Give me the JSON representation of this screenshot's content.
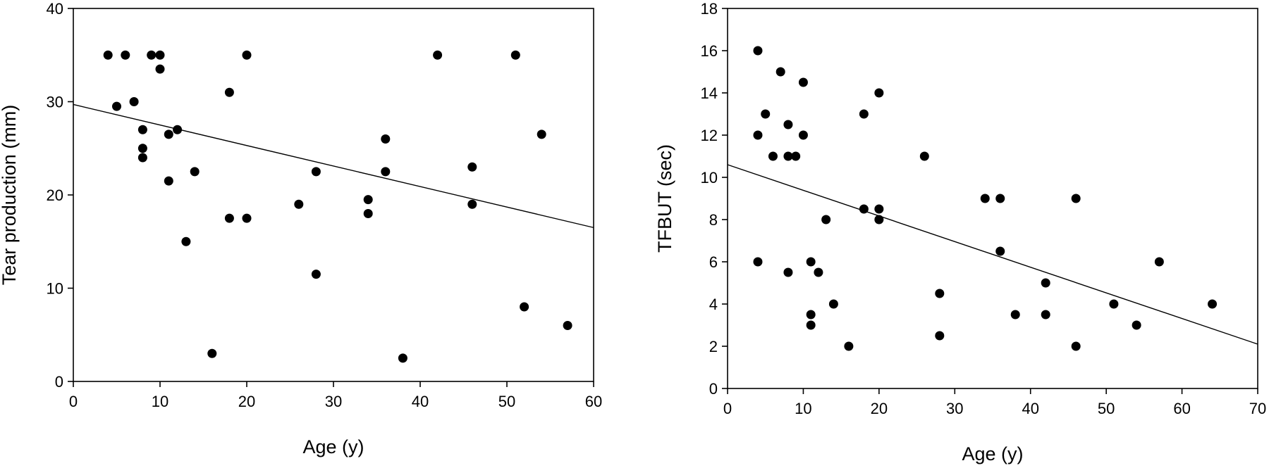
{
  "chart_data": [
    {
      "type": "scatter",
      "xlabel": "Age (y)",
      "ylabel": "Tear production (mm)",
      "xlim": [
        0,
        60
      ],
      "ylim": [
        0,
        40
      ],
      "xticks": [
        0,
        10,
        20,
        30,
        40,
        50,
        60
      ],
      "yticks": [
        0,
        10,
        20,
        30,
        40
      ],
      "grid": false,
      "points": [
        [
          4,
          35
        ],
        [
          6,
          35
        ],
        [
          9,
          35
        ],
        [
          10,
          35
        ],
        [
          20,
          35
        ],
        [
          42,
          35
        ],
        [
          51,
          35
        ],
        [
          10,
          33.5
        ],
        [
          18,
          31
        ],
        [
          7,
          30
        ],
        [
          5,
          29.5
        ],
        [
          8,
          27
        ],
        [
          12,
          27
        ],
        [
          11,
          26.5
        ],
        [
          54,
          26.5
        ],
        [
          36,
          26
        ],
        [
          8,
          25
        ],
        [
          8,
          24
        ],
        [
          46,
          23
        ],
        [
          14,
          22.5
        ],
        [
          28,
          22.5
        ],
        [
          36,
          22.5
        ],
        [
          11,
          21.5
        ],
        [
          34,
          19.5
        ],
        [
          26,
          19
        ],
        [
          46,
          19
        ],
        [
          34,
          18
        ],
        [
          18,
          17.5
        ],
        [
          20,
          17.5
        ],
        [
          13,
          15
        ],
        [
          28,
          11.5
        ],
        [
          52,
          8
        ],
        [
          57,
          6
        ],
        [
          16,
          3
        ],
        [
          38,
          2.5
        ]
      ],
      "fit_line": [
        [
          0,
          29.7
        ],
        [
          60,
          16.5
        ]
      ]
    },
    {
      "type": "scatter",
      "xlabel": "Age (y)",
      "ylabel": "TFBUT (sec)",
      "xlim": [
        0,
        70
      ],
      "ylim": [
        0,
        18
      ],
      "xticks": [
        0,
        10,
        20,
        30,
        40,
        50,
        60,
        70
      ],
      "yticks": [
        0,
        2,
        4,
        6,
        8,
        10,
        12,
        14,
        16,
        18
      ],
      "grid": false,
      "points": [
        [
          4,
          16
        ],
        [
          7,
          15
        ],
        [
          10,
          14.5
        ],
        [
          20,
          14
        ],
        [
          5,
          13
        ],
        [
          18,
          13
        ],
        [
          8,
          12.5
        ],
        [
          4,
          12
        ],
        [
          10,
          12
        ],
        [
          6,
          11
        ],
        [
          8,
          11
        ],
        [
          9,
          11
        ],
        [
          26,
          11
        ],
        [
          34,
          9
        ],
        [
          36,
          9
        ],
        [
          46,
          9
        ],
        [
          18,
          8.5
        ],
        [
          20,
          8.5
        ],
        [
          13,
          8
        ],
        [
          20,
          8
        ],
        [
          36,
          6.5
        ],
        [
          4,
          6
        ],
        [
          11,
          6
        ],
        [
          57,
          6
        ],
        [
          8,
          5.5
        ],
        [
          12,
          5.5
        ],
        [
          42,
          5
        ],
        [
          28,
          4.5
        ],
        [
          14,
          4
        ],
        [
          51,
          4
        ],
        [
          64,
          4
        ],
        [
          11,
          3.5
        ],
        [
          38,
          3.5
        ],
        [
          42,
          3.5
        ],
        [
          11,
          3
        ],
        [
          54,
          3
        ],
        [
          28,
          2.5
        ],
        [
          16,
          2
        ],
        [
          46,
          2
        ]
      ],
      "fit_line": [
        [
          0,
          10.6
        ],
        [
          70,
          2.1
        ]
      ]
    }
  ]
}
